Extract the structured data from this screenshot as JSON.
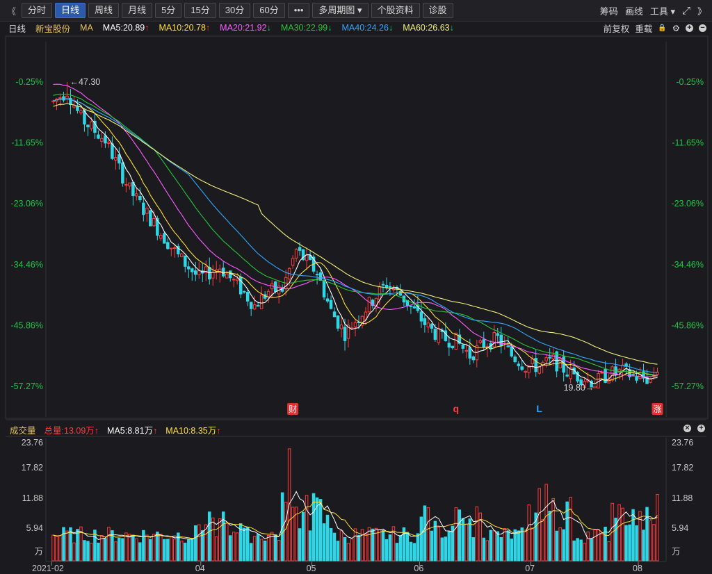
{
  "toolbar": {
    "left_arrow": "《",
    "buttons": [
      "分时",
      "日线",
      "周线",
      "月线",
      "5分",
      "15分",
      "30分",
      "60分",
      "•••",
      "多周期图 ▾",
      "个股资料",
      "诊股"
    ],
    "active_index": 1,
    "right_items": [
      "筹码",
      "画线",
      "工具 ▾"
    ],
    "fullscreen_icon": "expand-icon",
    "right_arrow": "》"
  },
  "info": {
    "period": "日线",
    "stock_name": "新宝股份",
    "ma_label": "MA",
    "ma": [
      {
        "label": "MA5:20.89",
        "arrow": "↑",
        "color": "#ffffff"
      },
      {
        "label": "MA10:20.78",
        "arrow": "↑",
        "color": "#ffe13a"
      },
      {
        "label": "MA20:21.92",
        "arrow": "↓",
        "color": "#ff5cff"
      },
      {
        "label": "MA30:22.99",
        "arrow": "↓",
        "color": "#26c43a"
      },
      {
        "label": "MA40:24.26",
        "arrow": "↓",
        "color": "#2ea8ff"
      },
      {
        "label": "MA60:26.63",
        "arrow": "↓",
        "color": "#f2f07a"
      }
    ],
    "right": [
      "前复权",
      "重载"
    ]
  },
  "volume_info": {
    "title": "成交量",
    "total": "总量:13.09万",
    "total_arrow": "↑",
    "ma5": "MA5:8.81万",
    "ma5_arrow": "↑",
    "ma10": "MA10:8.35万",
    "ma10_arrow": "↑"
  },
  "chart_data": {
    "type": "candlestick",
    "price_axis_pct": [
      "-0.25%",
      "-11.65%",
      "-23.06%",
      "-34.46%",
      "-45.86%",
      "-57.27%"
    ],
    "volume_axis": [
      "23.76",
      "17.82",
      "11.88",
      "5.94",
      "万"
    ],
    "x_labels": [
      "2021-02",
      "04",
      "05",
      "06",
      "07",
      "08"
    ],
    "x_label_idx": [
      0,
      43,
      75,
      106,
      138,
      169
    ],
    "high_label": "←47.30",
    "high_index": 4,
    "low_label": "19.80→",
    "low_index": 157,
    "markers": [
      {
        "text": "财",
        "idx": 69,
        "style": "box"
      },
      {
        "text": "q",
        "idx": 116,
        "style": "red"
      },
      {
        "text": "L",
        "idx": 140,
        "style": "blue"
      },
      {
        "text": "涨",
        "idx": 174,
        "style": "box"
      }
    ],
    "price_min": 19.8,
    "price_max": 47.3,
    "volume_max": 23.76,
    "colors": {
      "up": "#ff3b3b",
      "down": "#2fd6e6",
      "ma5": "#ffffff",
      "ma10": "#ffe13a",
      "ma20": "#ff5cff",
      "ma30": "#26c43a",
      "ma40": "#2ea8ff",
      "ma60": "#f2f07a"
    }
  }
}
